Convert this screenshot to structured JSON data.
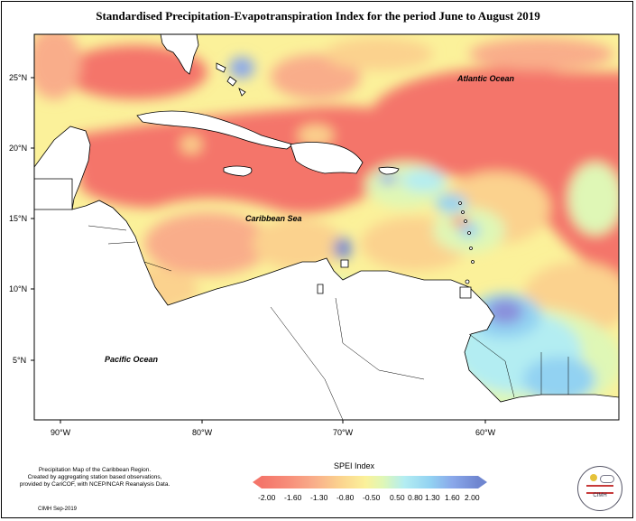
{
  "title": "Standardised Precipitation-Evapotranspiration Index for the period June to August 2019",
  "map": {
    "lat_labels": [
      "25°N",
      "20°N",
      "15°N",
      "10°N",
      "5°N"
    ],
    "lon_labels": [
      "90°W",
      "80°W",
      "70°W",
      "60°W"
    ],
    "ocean_labels": [
      "Atlantic Ocean",
      "Caribbean Sea",
      "Pacific Ocean"
    ],
    "colors": {
      "land": "#ffffff",
      "coast": "#000000"
    }
  },
  "legend": {
    "title": "SPEI Index",
    "ticks": [
      "-2.00",
      "-1.60",
      "-1.30",
      "-0.80",
      "-0.50",
      "0.50",
      "0.80",
      "1.30",
      "1.60",
      "2.00"
    ],
    "colors": [
      "#f4756a",
      "#f78d79",
      "#f9ad8a",
      "#fbd28e",
      "#fbf19a",
      "#dff7b6",
      "#b3edf2",
      "#92d2f2",
      "#8aa8ea",
      "#8a8fdb",
      "#6f86d0"
    ]
  },
  "credit": {
    "lines": [
      "Precipitation Map of the Caribbean Region.",
      "Created by aggregating station based observations,",
      "provided by CariCOF, with NCEP/NCAR Reanalysis Data."
    ],
    "footer": "CIMH Sep-2019"
  },
  "logo": {
    "text": "CIMH"
  }
}
